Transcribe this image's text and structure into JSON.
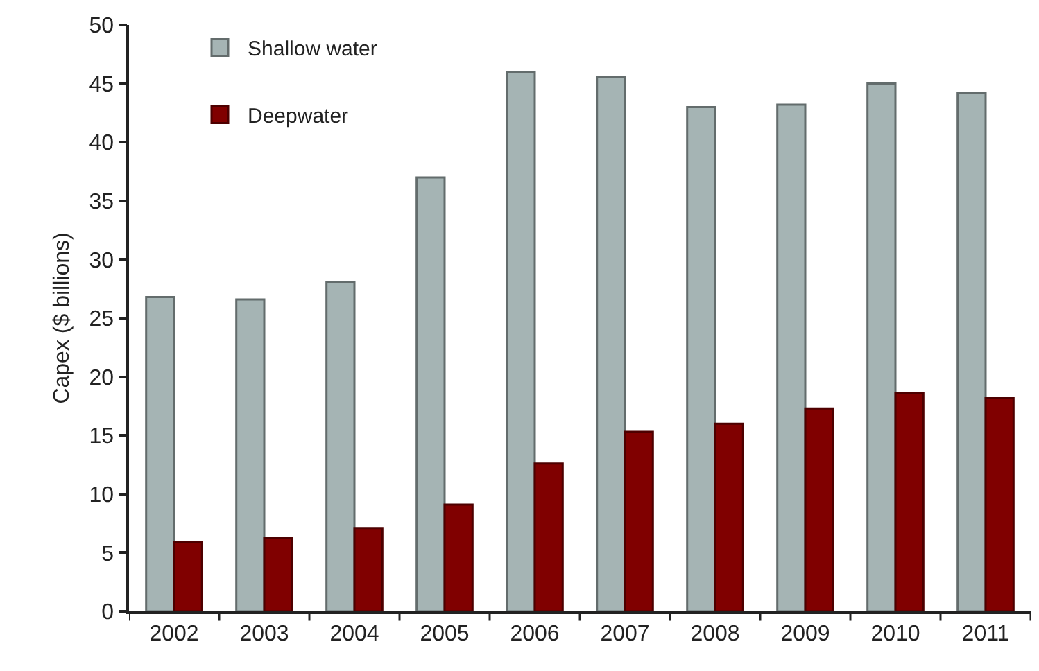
{
  "chart_data": {
    "type": "bar",
    "ylabel": "Capex ($ billions)",
    "categories": [
      "2002",
      "2003",
      "2004",
      "2005",
      "2006",
      "2007",
      "2008",
      "2009",
      "2010",
      "2011"
    ],
    "series": [
      {
        "name": "Shallow water",
        "color": "#a5b4b4",
        "values": [
          26.8,
          26.6,
          28.1,
          37.0,
          46.0,
          45.6,
          43.0,
          43.2,
          45.0,
          44.2
        ]
      },
      {
        "name": "Deepwater",
        "color": "#800000",
        "values": [
          5.9,
          6.3,
          7.1,
          9.1,
          12.6,
          15.3,
          16.0,
          17.3,
          18.6,
          18.2
        ]
      }
    ],
    "ylim": [
      0,
      50
    ],
    "yticks": [
      0,
      5,
      10,
      15,
      20,
      25,
      30,
      35,
      40,
      45,
      50
    ],
    "grid": false,
    "legend": "top left"
  }
}
